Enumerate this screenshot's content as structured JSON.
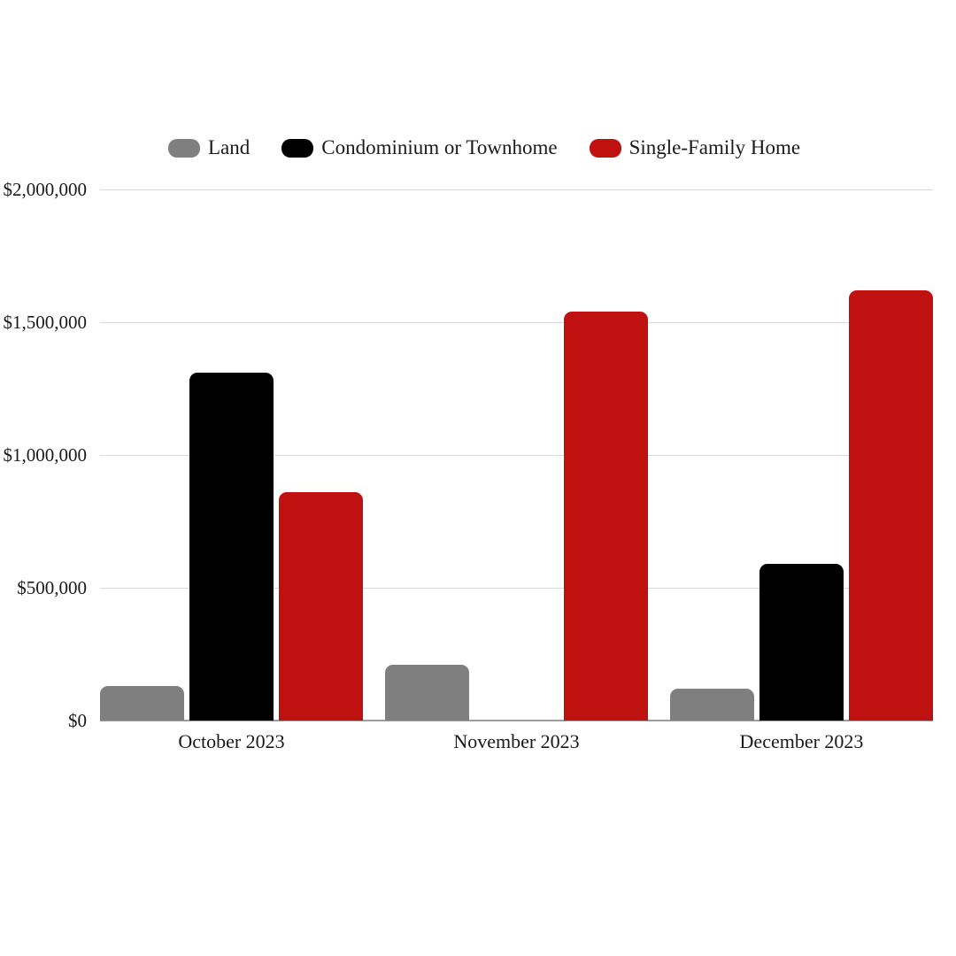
{
  "chart_data": {
    "type": "bar",
    "title": "",
    "categories": [
      "October 2023",
      "November 2023",
      "December 2023"
    ],
    "series": [
      {
        "name": "Land",
        "color": "#7F7F7F",
        "values": [
          130000,
          210000,
          120000
        ]
      },
      {
        "name": "Condominium or Townhome",
        "color": "#000000",
        "values": [
          1310000,
          0,
          590000
        ]
      },
      {
        "name": "Single-Family Home",
        "color": "#C01111",
        "values": [
          860000,
          1540000,
          1620000
        ]
      }
    ],
    "y_axis": {
      "min": 0,
      "max": 2000000,
      "tick_values": [
        2000000,
        1500000,
        1000000,
        500000,
        0
      ],
      "tick_labels": [
        "$2,000,000",
        "$1,500,000",
        "$1,000,000",
        "$500,000",
        "$0"
      ]
    },
    "grid": true,
    "legend_position": "top"
  },
  "colors": {
    "background": "#FFFFFF",
    "gridline": "#DADADA",
    "axis_line": "#9E9E9E",
    "text": "#1A1A1A"
  }
}
